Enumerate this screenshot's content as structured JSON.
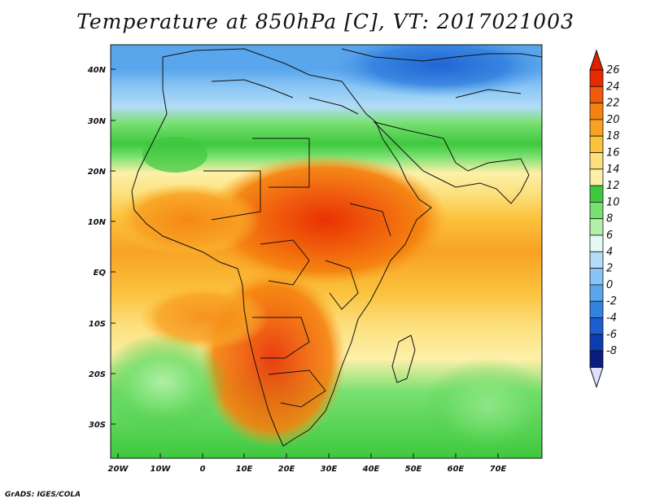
{
  "title": "Temperature at 850hPa [C], VT: 2017021003",
  "footer": "GrADS: IGES/COLA",
  "map": {
    "lat_ticks": [
      "40N",
      "30N",
      "20N",
      "10N",
      "EQ",
      "10S",
      "20S",
      "30S"
    ],
    "lon_ticks": [
      "20W",
      "10W",
      "0",
      "10E",
      "20E",
      "30E",
      "40E",
      "50E",
      "60E",
      "70E"
    ]
  },
  "colorbar": {
    "labels": [
      "26",
      "24",
      "22",
      "20",
      "18",
      "16",
      "14",
      "12",
      "10",
      "8",
      "6",
      "4",
      "2",
      "0",
      "-2",
      "-4",
      "-6",
      "-8"
    ],
    "colors": [
      "#e82a00",
      "#f05a0a",
      "#f5820f",
      "#f8a224",
      "#fbc23d",
      "#fce07e",
      "#fdf0a8",
      "#3ec83e",
      "#78e070",
      "#b0f0a8",
      "#e4f8f4",
      "#b2dcf8",
      "#88c4f4",
      "#5aa6ec",
      "#3482e0",
      "#1c5ed2",
      "#0c3cb0",
      "#0a1c80"
    ],
    "top_arrow_color": "#e02000",
    "bottom_arrow_color": "#e0e0ff"
  },
  "chart_data": {
    "type": "heatmap",
    "variable": "Temperature at 850hPa",
    "units": "C",
    "valid_time": "2017021003",
    "lon_range": [
      -25,
      80
    ],
    "lat_range": [
      -36,
      45
    ],
    "color_levels": [
      -8,
      -6,
      -4,
      -2,
      0,
      2,
      4,
      6,
      8,
      10,
      12,
      14,
      16,
      18,
      20,
      22,
      24,
      26
    ]
  }
}
